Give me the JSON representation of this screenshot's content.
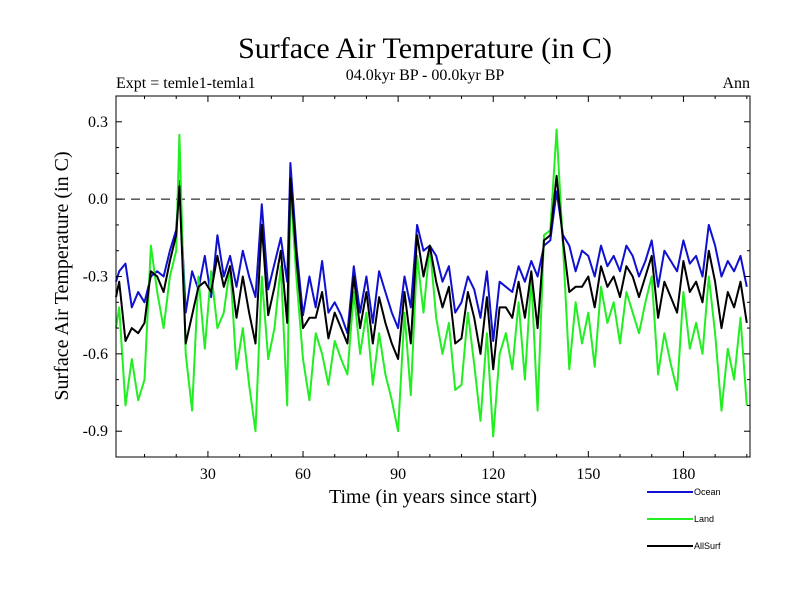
{
  "chart_data": {
    "type": "line",
    "title": "Surface Air Temperature (in C)",
    "subtitle": "04.0kyr BP - 00.0kyr BP",
    "expt_label": "Expt = temle1-temla1",
    "period_label": "Ann",
    "xlabel": "Time (in years since start)",
    "ylabel": "Surface Air Temperature (in C)",
    "xlim": [
      1,
      201
    ],
    "ylim": [
      -1.0,
      0.4
    ],
    "xticks": [
      30,
      60,
      90,
      120,
      150,
      180
    ],
    "yticks": [
      0.3,
      0.0,
      -0.3,
      -0.6,
      -0.9
    ],
    "ytick_labels": [
      "0.3",
      "0.0",
      "-0.3",
      "-0.6",
      "-0.9"
    ],
    "zero_line": {
      "value": 0.0,
      "style": "dashed"
    },
    "legend_position": "bottom-right, outside plot",
    "series": [
      {
        "name": "Ocean",
        "color": "#1010d0",
        "x": [
          1,
          2,
          4,
          6,
          8,
          10,
          12,
          14,
          16,
          18,
          20,
          21,
          23,
          25,
          27,
          29,
          31,
          33,
          35,
          37,
          39,
          41,
          43,
          45,
          47,
          49,
          51,
          53,
          55,
          56,
          58,
          60,
          62,
          64,
          66,
          68,
          70,
          72,
          74,
          76,
          78,
          80,
          82,
          84,
          86,
          88,
          90,
          92,
          94,
          96,
          98,
          100,
          102,
          104,
          106,
          108,
          110,
          112,
          114,
          116,
          118,
          120,
          122,
          124,
          126,
          128,
          130,
          132,
          134,
          136,
          138,
          140,
          142,
          144,
          146,
          148,
          150,
          152,
          154,
          156,
          158,
          160,
          162,
          164,
          166,
          168,
          170,
          172,
          174,
          176,
          178,
          180,
          182,
          184,
          186,
          188,
          190,
          192,
          194,
          196,
          198,
          200
        ],
        "values": [
          -0.32,
          -0.28,
          -0.25,
          -0.42,
          -0.36,
          -0.4,
          -0.3,
          -0.28,
          -0.3,
          -0.2,
          -0.12,
          0.07,
          -0.44,
          -0.28,
          -0.35,
          -0.22,
          -0.38,
          -0.14,
          -0.3,
          -0.22,
          -0.34,
          -0.2,
          -0.3,
          -0.38,
          -0.02,
          -0.35,
          -0.25,
          -0.15,
          -0.32,
          0.14,
          -0.2,
          -0.45,
          -0.3,
          -0.42,
          -0.24,
          -0.44,
          -0.4,
          -0.45,
          -0.52,
          -0.26,
          -0.44,
          -0.3,
          -0.48,
          -0.28,
          -0.36,
          -0.44,
          -0.5,
          -0.3,
          -0.42,
          -0.1,
          -0.2,
          -0.18,
          -0.22,
          -0.32,
          -0.26,
          -0.44,
          -0.4,
          -0.3,
          -0.35,
          -0.46,
          -0.28,
          -0.55,
          -0.32,
          -0.34,
          -0.36,
          -0.26,
          -0.32,
          -0.24,
          -0.3,
          -0.18,
          -0.16,
          0.03,
          -0.14,
          -0.18,
          -0.28,
          -0.2,
          -0.22,
          -0.3,
          -0.18,
          -0.26,
          -0.22,
          -0.28,
          -0.18,
          -0.22,
          -0.3,
          -0.24,
          -0.16,
          -0.34,
          -0.2,
          -0.24,
          -0.28,
          -0.16,
          -0.25,
          -0.22,
          -0.3,
          -0.1,
          -0.18,
          -0.3,
          -0.24,
          -0.28,
          -0.22,
          -0.34
        ]
      },
      {
        "name": "Land",
        "color": "#22ee22",
        "x": [
          1,
          2,
          4,
          6,
          8,
          10,
          12,
          14,
          16,
          18,
          20,
          21,
          23,
          25,
          27,
          29,
          31,
          33,
          35,
          37,
          39,
          41,
          43,
          45,
          47,
          49,
          51,
          53,
          55,
          56,
          58,
          60,
          62,
          64,
          66,
          68,
          70,
          72,
          74,
          76,
          78,
          80,
          82,
          84,
          86,
          88,
          90,
          92,
          94,
          96,
          98,
          100,
          102,
          104,
          106,
          108,
          110,
          112,
          114,
          116,
          118,
          120,
          122,
          124,
          126,
          128,
          130,
          132,
          134,
          136,
          138,
          140,
          142,
          144,
          146,
          148,
          150,
          152,
          154,
          156,
          158,
          160,
          162,
          164,
          166,
          168,
          170,
          172,
          174,
          176,
          178,
          180,
          182,
          184,
          186,
          188,
          190,
          192,
          194,
          196,
          198,
          200
        ],
        "values": [
          -0.5,
          -0.42,
          -0.8,
          -0.62,
          -0.78,
          -0.7,
          -0.18,
          -0.36,
          -0.5,
          -0.3,
          -0.2,
          0.25,
          -0.6,
          -0.82,
          -0.3,
          -0.58,
          -0.28,
          -0.5,
          -0.44,
          -0.26,
          -0.66,
          -0.5,
          -0.72,
          -0.9,
          -0.3,
          -0.62,
          -0.5,
          -0.26,
          -0.8,
          0.04,
          -0.32,
          -0.62,
          -0.78,
          -0.52,
          -0.6,
          -0.72,
          -0.55,
          -0.62,
          -0.68,
          -0.36,
          -0.6,
          -0.44,
          -0.72,
          -0.52,
          -0.68,
          -0.78,
          -0.9,
          -0.44,
          -0.76,
          -0.22,
          -0.44,
          -0.18,
          -0.46,
          -0.6,
          -0.48,
          -0.74,
          -0.72,
          -0.44,
          -0.64,
          -0.86,
          -0.52,
          -0.92,
          -0.6,
          -0.52,
          -0.66,
          -0.4,
          -0.7,
          -0.3,
          -0.82,
          -0.14,
          -0.12,
          0.27,
          -0.18,
          -0.66,
          -0.4,
          -0.56,
          -0.44,
          -0.65,
          -0.34,
          -0.48,
          -0.4,
          -0.56,
          -0.36,
          -0.44,
          -0.52,
          -0.4,
          -0.3,
          -0.68,
          -0.52,
          -0.64,
          -0.74,
          -0.36,
          -0.58,
          -0.48,
          -0.6,
          -0.3,
          -0.52,
          -0.82,
          -0.58,
          -0.7,
          -0.46,
          -0.8
        ]
      },
      {
        "name": "AllSurf",
        "color": "#000000",
        "x": [
          1,
          2,
          4,
          6,
          8,
          10,
          12,
          14,
          16,
          18,
          20,
          21,
          23,
          25,
          27,
          29,
          31,
          33,
          35,
          37,
          39,
          41,
          43,
          45,
          47,
          49,
          51,
          53,
          55,
          56,
          58,
          60,
          62,
          64,
          66,
          68,
          70,
          72,
          74,
          76,
          78,
          80,
          82,
          84,
          86,
          88,
          90,
          92,
          94,
          96,
          98,
          100,
          102,
          104,
          106,
          108,
          110,
          112,
          114,
          116,
          118,
          120,
          122,
          124,
          126,
          128,
          130,
          132,
          134,
          136,
          138,
          140,
          142,
          144,
          146,
          148,
          150,
          152,
          154,
          156,
          158,
          160,
          162,
          164,
          166,
          168,
          170,
          172,
          174,
          176,
          178,
          180,
          182,
          184,
          186,
          188,
          190,
          192,
          194,
          196,
          198,
          200
        ],
        "values": [
          -0.38,
          -0.32,
          -0.55,
          -0.5,
          -0.52,
          -0.48,
          -0.28,
          -0.3,
          -0.36,
          -0.24,
          -0.14,
          0.05,
          -0.56,
          -0.45,
          -0.34,
          -0.32,
          -0.36,
          -0.22,
          -0.34,
          -0.26,
          -0.46,
          -0.3,
          -0.44,
          -0.56,
          -0.1,
          -0.45,
          -0.34,
          -0.2,
          -0.48,
          0.08,
          -0.24,
          -0.5,
          -0.46,
          -0.46,
          -0.36,
          -0.54,
          -0.44,
          -0.5,
          -0.56,
          -0.3,
          -0.5,
          -0.36,
          -0.56,
          -0.38,
          -0.48,
          -0.56,
          -0.62,
          -0.36,
          -0.56,
          -0.14,
          -0.3,
          -0.18,
          -0.32,
          -0.42,
          -0.34,
          -0.56,
          -0.54,
          -0.36,
          -0.46,
          -0.6,
          -0.38,
          -0.66,
          -0.42,
          -0.42,
          -0.46,
          -0.32,
          -0.46,
          -0.28,
          -0.5,
          -0.16,
          -0.14,
          0.09,
          -0.16,
          -0.36,
          -0.34,
          -0.34,
          -0.3,
          -0.42,
          -0.26,
          -0.34,
          -0.3,
          -0.38,
          -0.26,
          -0.3,
          -0.38,
          -0.3,
          -0.22,
          -0.46,
          -0.32,
          -0.38,
          -0.44,
          -0.24,
          -0.36,
          -0.32,
          -0.4,
          -0.2,
          -0.32,
          -0.5,
          -0.36,
          -0.42,
          -0.32,
          -0.48
        ]
      }
    ]
  }
}
